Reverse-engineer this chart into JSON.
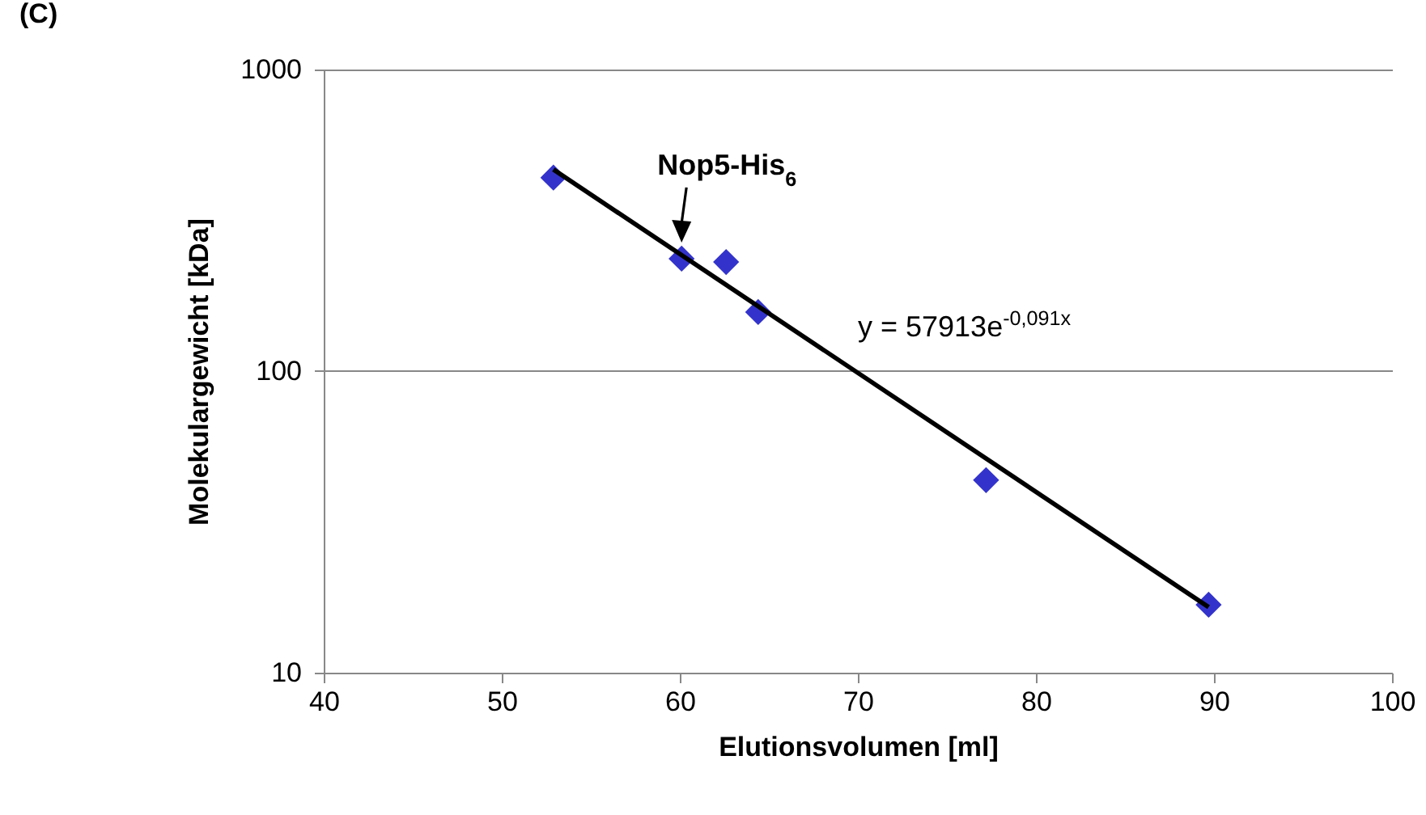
{
  "chart_data": {
    "type": "scatter",
    "title": "(C)",
    "xlabel": "Elutionsvolumen [ml]",
    "ylabel": "Molekulargewicht [kDa]",
    "series": [
      {
        "color": "#3333cc",
        "marker": "diamond",
        "x": [
          52.9,
          60.1,
          62.6,
          64.4,
          77.2,
          89.7
        ],
        "values": [
          438,
          236,
          230,
          157,
          43.5,
          16.8
        ]
      },
      {
        "type": "line",
        "color": "#000000",
        "marker": "none",
        "x": [
          52.9,
          89.7
        ],
        "values": [
          466,
          16.5
        ]
      }
    ],
    "annotations": [
      "y = 57913e$^{-0,091x}$",
      {
        "text": "Nop5-His$_{6}$",
        "x": 60.1,
        "y": 236
      }
    ],
    "xlim": [
      40,
      100
    ],
    "xticks": [
      40,
      50,
      60,
      70,
      80,
      90,
      100
    ],
    "ylim": [
      10,
      1000
    ],
    "yticks": [
      10,
      100,
      1000
    ],
    "log": "y",
    "grid": "y"
  }
}
